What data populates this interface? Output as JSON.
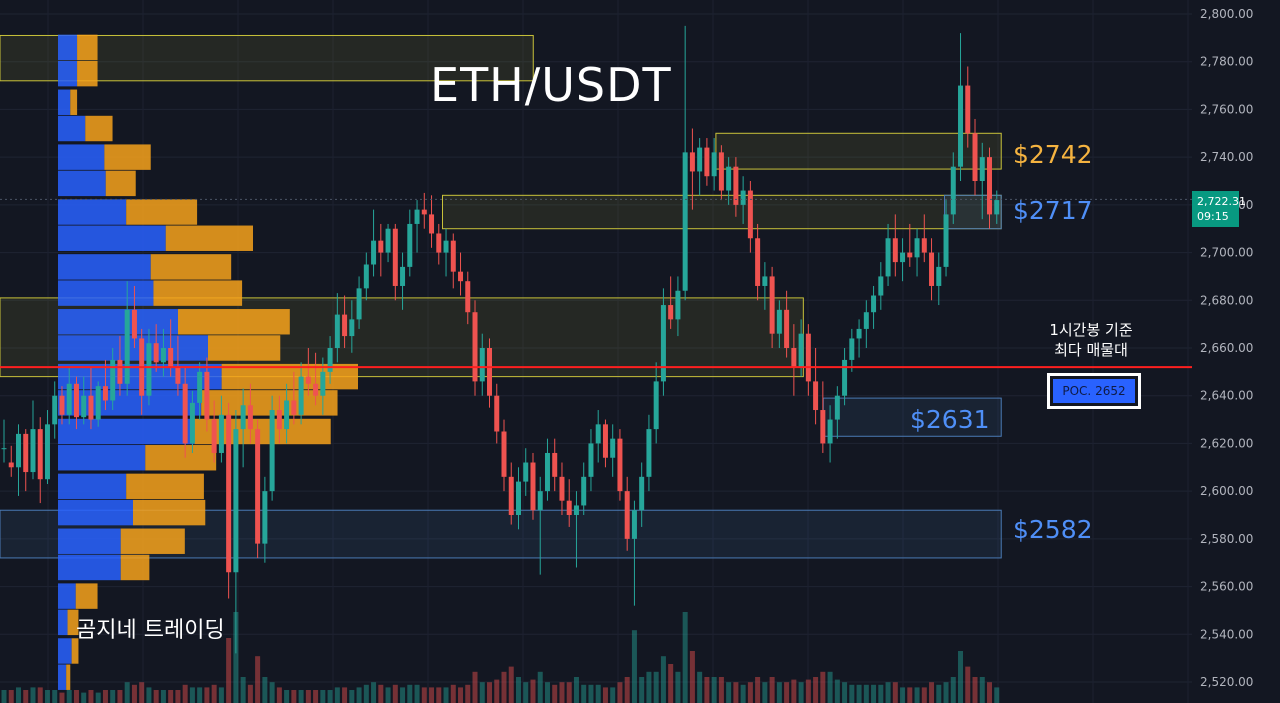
{
  "title": "ETH/USDT",
  "watermark": "곰지네 트레이딩",
  "levels": {
    "l2742": "$2742",
    "l2717": "$2717",
    "l2631": "$2631",
    "l2582": "$2582"
  },
  "poc": {
    "note_line1": "1시간봉 기준",
    "note_line2": "최다 매물대",
    "label": "POC. 2652"
  },
  "current": {
    "price": "2,722.31",
    "countdown": "09:15"
  },
  "colors": {
    "background": "#131722",
    "up": "#26a69a",
    "down": "#ef5350",
    "poc_line": "#ff1f1f",
    "profile_blue": "#2962ff",
    "profile_orange": "#f7a21b",
    "zone_yellow": "#c9c23a",
    "zone_blue": "#4a7ab5"
  },
  "chart_data": {
    "type": "candlestick",
    "symbol": "ETH/USDT",
    "timeframe": "1h",
    "y_axis": {
      "ylim": [
        2510,
        2815
      ],
      "ticks": [
        "2,800.00",
        "2,780.00",
        "2,760.00",
        "2,740.00",
        "2,720.00",
        "2,700.00",
        "2,680.00",
        "2,660.00",
        "2,640.00",
        "2,620.00",
        "2,600.00",
        "2,580.00",
        "2,560.00",
        "2,540.00",
        "2,520.00"
      ]
    },
    "grid": true,
    "last_price": 2722.31,
    "poc": 2652,
    "marked_levels": [
      2742,
      2717,
      2631,
      2582
    ],
    "zones": [
      {
        "kind": "yellow",
        "low": 2772,
        "high": 2791,
        "from": 0,
        "to": 0.4166
      },
      {
        "kind": "yellow",
        "low": 2735,
        "high": 2750,
        "from": 0.5593,
        "to": 0.7822
      },
      {
        "kind": "yellow",
        "low": 2710,
        "high": 2724,
        "from": 0.3457,
        "to": 0.7822
      },
      {
        "kind": "yellow",
        "low": 2648,
        "high": 2681,
        "from": 0,
        "to": 0.6276
      },
      {
        "kind": "blue",
        "low": 2710,
        "high": 2724,
        "from": 0.7379,
        "to": 0.7822
      },
      {
        "kind": "blue",
        "low": 2623,
        "high": 2639,
        "from": 0.6432,
        "to": 0.7822
      },
      {
        "kind": "blue",
        "low": 2572,
        "high": 2592,
        "from": 0,
        "to": 0.7822
      }
    ],
    "volume_profile": {
      "price_step": 11.5,
      "rows": [
        {
          "price": 2786,
          "up": 0.14,
          "down": 0.15
        },
        {
          "price": 2775,
          "up": 0.14,
          "down": 0.15
        },
        {
          "price": 2763,
          "up": 0.09,
          "down": 0.05
        },
        {
          "price": 2752,
          "up": 0.2,
          "down": 0.2
        },
        {
          "price": 2740,
          "up": 0.34,
          "down": 0.34
        },
        {
          "price": 2729,
          "up": 0.35,
          "down": 0.22
        },
        {
          "price": 2717,
          "up": 0.5,
          "down": 0.52
        },
        {
          "price": 2706,
          "up": 0.79,
          "down": 0.64
        },
        {
          "price": 2694,
          "up": 0.68,
          "down": 0.59
        },
        {
          "price": 2683,
          "up": 0.7,
          "down": 0.65
        },
        {
          "price": 2671,
          "up": 0.88,
          "down": 0.82
        },
        {
          "price": 2660,
          "up": 1.1,
          "down": 0.53
        },
        {
          "price": 2648,
          "up": 1.2,
          "down": 1.0
        },
        {
          "price": 2637,
          "up": 1.05,
          "down": 1.0
        },
        {
          "price": 2625,
          "up": 1.0,
          "down": 1.0
        },
        {
          "price": 2614,
          "up": 0.64,
          "down": 0.52
        },
        {
          "price": 2602,
          "up": 0.5,
          "down": 0.57
        },
        {
          "price": 2591,
          "up": 0.55,
          "down": 0.53
        },
        {
          "price": 2579,
          "up": 0.46,
          "down": 0.47
        },
        {
          "price": 2568,
          "up": 0.46,
          "down": 0.21
        },
        {
          "price": 2556,
          "up": 0.13,
          "down": 0.16
        },
        {
          "price": 2545,
          "up": 0.07,
          "down": 0.08
        },
        {
          "price": 2533,
          "up": 0.1,
          "down": 0.05
        },
        {
          "price": 2522,
          "up": 0.06,
          "down": 0.03
        }
      ]
    },
    "candles": [
      [
        2618,
        2630,
        2612,
        2618,
        0.05
      ],
      [
        2612,
        2619,
        2606,
        2610,
        0.05
      ],
      [
        2610,
        2628,
        2598,
        2624,
        0.06
      ],
      [
        2624,
        2626,
        2600,
        2608,
        0.05
      ],
      [
        2608,
        2638,
        2605,
        2626,
        0.06
      ],
      [
        2626,
        2631,
        2595,
        2605,
        0.06
      ],
      [
        2605,
        2634,
        2603,
        2628,
        0.05
      ],
      [
        2628,
        2646,
        2622,
        2640,
        0.05
      ],
      [
        2640,
        2644,
        2628,
        2632,
        0.04
      ],
      [
        2632,
        2652,
        2628,
        2645,
        0.05
      ],
      [
        2645,
        2648,
        2626,
        2631,
        0.05
      ],
      [
        2631,
        2648,
        2628,
        2640,
        0.04
      ],
      [
        2640,
        2652,
        2626,
        2630,
        0.05
      ],
      [
        2630,
        2646,
        2627,
        2644,
        0.04
      ],
      [
        2644,
        2655,
        2634,
        2638,
        0.05
      ],
      [
        2638,
        2660,
        2634,
        2655,
        0.05
      ],
      [
        2655,
        2665,
        2640,
        2645,
        0.05
      ],
      [
        2645,
        2688,
        2640,
        2676,
        0.08
      ],
      [
        2676,
        2686,
        2660,
        2664,
        0.07
      ],
      [
        2664,
        2668,
        2632,
        2640,
        0.08
      ],
      [
        2640,
        2668,
        2636,
        2662,
        0.06
      ],
      [
        2662,
        2670,
        2650,
        2654,
        0.05
      ],
      [
        2654,
        2668,
        2648,
        2660,
        0.05
      ],
      [
        2660,
        2672,
        2648,
        2652,
        0.05
      ],
      [
        2652,
        2665,
        2640,
        2645,
        0.05
      ],
      [
        2645,
        2652,
        2614,
        2620,
        0.07
      ],
      [
        2620,
        2642,
        2616,
        2637,
        0.06
      ],
      [
        2637,
        2654,
        2630,
        2650,
        0.06
      ],
      [
        2650,
        2656,
        2625,
        2630,
        0.06
      ],
      [
        2630,
        2638,
        2612,
        2616,
        0.07
      ],
      [
        2616,
        2640,
        2612,
        2632,
        0.06
      ],
      [
        2632,
        2637,
        2555,
        2566,
        0.25
      ],
      [
        2566,
        2634,
        2532,
        2626,
        0.35
      ],
      [
        2626,
        2643,
        2610,
        2636,
        0.1
      ],
      [
        2636,
        2645,
        2620,
        2626,
        0.07
      ],
      [
        2626,
        2630,
        2572,
        2578,
        0.18
      ],
      [
        2578,
        2606,
        2570,
        2600,
        0.1
      ],
      [
        2600,
        2640,
        2596,
        2634,
        0.08
      ],
      [
        2634,
        2640,
        2620,
        2626,
        0.06
      ],
      [
        2626,
        2645,
        2620,
        2638,
        0.05
      ],
      [
        2638,
        2650,
        2628,
        2632,
        0.05
      ],
      [
        2632,
        2654,
        2628,
        2648,
        0.05
      ],
      [
        2648,
        2660,
        2640,
        2645,
        0.05
      ],
      [
        2645,
        2658,
        2636,
        2640,
        0.05
      ],
      [
        2640,
        2656,
        2632,
        2650,
        0.05
      ],
      [
        2650,
        2665,
        2645,
        2660,
        0.05
      ],
      [
        2660,
        2683,
        2654,
        2674,
        0.06
      ],
      [
        2674,
        2682,
        2660,
        2665,
        0.06
      ],
      [
        2665,
        2680,
        2658,
        2672,
        0.05
      ],
      [
        2672,
        2690,
        2668,
        2685,
        0.06
      ],
      [
        2685,
        2700,
        2680,
        2695,
        0.07
      ],
      [
        2695,
        2718,
        2690,
        2705,
        0.08
      ],
      [
        2705,
        2712,
        2690,
        2700,
        0.07
      ],
      [
        2700,
        2712,
        2696,
        2710,
        0.06
      ],
      [
        2710,
        2712,
        2680,
        2686,
        0.07
      ],
      [
        2686,
        2700,
        2676,
        2694,
        0.06
      ],
      [
        2694,
        2718,
        2690,
        2712,
        0.07
      ],
      [
        2712,
        2722,
        2700,
        2718,
        0.07
      ],
      [
        2718,
        2725,
        2710,
        2716,
        0.06
      ],
      [
        2716,
        2724,
        2702,
        2708,
        0.06
      ],
      [
        2708,
        2712,
        2695,
        2700,
        0.06
      ],
      [
        2700,
        2710,
        2690,
        2705,
        0.06
      ],
      [
        2705,
        2708,
        2685,
        2692,
        0.07
      ],
      [
        2692,
        2700,
        2682,
        2688,
        0.06
      ],
      [
        2688,
        2692,
        2670,
        2675,
        0.07
      ],
      [
        2675,
        2680,
        2640,
        2646,
        0.12
      ],
      [
        2646,
        2666,
        2640,
        2660,
        0.08
      ],
      [
        2660,
        2664,
        2635,
        2640,
        0.08
      ],
      [
        2640,
        2645,
        2620,
        2625,
        0.09
      ],
      [
        2625,
        2630,
        2600,
        2606,
        0.12
      ],
      [
        2606,
        2612,
        2586,
        2590,
        0.14
      ],
      [
        2590,
        2610,
        2584,
        2604,
        0.1
      ],
      [
        2604,
        2618,
        2598,
        2612,
        0.08
      ],
      [
        2612,
        2616,
        2588,
        2592,
        0.09
      ],
      [
        2592,
        2606,
        2565,
        2600,
        0.12
      ],
      [
        2600,
        2622,
        2596,
        2616,
        0.08
      ],
      [
        2616,
        2622,
        2600,
        2606,
        0.07
      ],
      [
        2606,
        2612,
        2590,
        2596,
        0.08
      ],
      [
        2596,
        2605,
        2585,
        2590,
        0.08
      ],
      [
        2590,
        2600,
        2568,
        2594,
        0.1
      ],
      [
        2594,
        2612,
        2590,
        2606,
        0.07
      ],
      [
        2606,
        2626,
        2600,
        2620,
        0.07
      ],
      [
        2620,
        2634,
        2612,
        2628,
        0.07
      ],
      [
        2628,
        2630,
        2610,
        2614,
        0.06
      ],
      [
        2614,
        2628,
        2606,
        2622,
        0.06
      ],
      [
        2622,
        2626,
        2596,
        2600,
        0.08
      ],
      [
        2600,
        2606,
        2575,
        2580,
        0.1
      ],
      [
        2580,
        2596,
        2552,
        2592,
        0.28
      ],
      [
        2592,
        2612,
        2585,
        2606,
        0.1
      ],
      [
        2606,
        2632,
        2600,
        2626,
        0.12
      ],
      [
        2626,
        2654,
        2620,
        2646,
        0.12
      ],
      [
        2646,
        2685,
        2640,
        2678,
        0.18
      ],
      [
        2678,
        2690,
        2668,
        2672,
        0.15
      ],
      [
        2672,
        2690,
        2665,
        2684,
        0.12
      ],
      [
        2684,
        2795,
        2680,
        2742,
        0.35
      ],
      [
        2742,
        2752,
        2718,
        2734,
        0.2
      ],
      [
        2734,
        2748,
        2724,
        2744,
        0.12
      ],
      [
        2744,
        2748,
        2728,
        2732,
        0.1
      ],
      [
        2732,
        2748,
        2726,
        2742,
        0.1
      ],
      [
        2742,
        2745,
        2722,
        2726,
        0.1
      ],
      [
        2726,
        2740,
        2720,
        2736,
        0.08
      ],
      [
        2736,
        2740,
        2715,
        2720,
        0.08
      ],
      [
        2720,
        2732,
        2712,
        2726,
        0.07
      ],
      [
        2726,
        2730,
        2700,
        2706,
        0.08
      ],
      [
        2706,
        2712,
        2680,
        2686,
        0.1
      ],
      [
        2686,
        2696,
        2676,
        2690,
        0.08
      ],
      [
        2690,
        2694,
        2660,
        2666,
        0.1
      ],
      [
        2666,
        2680,
        2660,
        2676,
        0.08
      ],
      [
        2676,
        2684,
        2656,
        2660,
        0.08
      ],
      [
        2660,
        2670,
        2640,
        2652,
        0.09
      ],
      [
        2652,
        2672,
        2648,
        2666,
        0.08
      ],
      [
        2666,
        2670,
        2640,
        2646,
        0.09
      ],
      [
        2646,
        2660,
        2628,
        2634,
        0.1
      ],
      [
        2634,
        2646,
        2616,
        2620,
        0.12
      ],
      [
        2620,
        2636,
        2612,
        2630,
        0.12
      ],
      [
        2630,
        2644,
        2622,
        2640,
        0.09
      ],
      [
        2640,
        2660,
        2636,
        2655,
        0.08
      ],
      [
        2655,
        2668,
        2650,
        2664,
        0.07
      ],
      [
        2664,
        2672,
        2656,
        2668,
        0.07
      ],
      [
        2668,
        2680,
        2660,
        2675,
        0.07
      ],
      [
        2675,
        2686,
        2668,
        2682,
        0.07
      ],
      [
        2682,
        2696,
        2676,
        2690,
        0.07
      ],
      [
        2690,
        2712,
        2686,
        2706,
        0.08
      ],
      [
        2706,
        2716,
        2690,
        2696,
        0.08
      ],
      [
        2696,
        2706,
        2688,
        2700,
        0.06
      ],
      [
        2700,
        2712,
        2694,
        2698,
        0.06
      ],
      [
        2698,
        2710,
        2690,
        2706,
        0.06
      ],
      [
        2706,
        2716,
        2696,
        2700,
        0.06
      ],
      [
        2700,
        2706,
        2680,
        2686,
        0.08
      ],
      [
        2686,
        2700,
        2678,
        2694,
        0.07
      ],
      [
        2694,
        2722,
        2690,
        2716,
        0.08
      ],
      [
        2716,
        2742,
        2712,
        2736,
        0.1
      ],
      [
        2736,
        2792,
        2730,
        2770,
        0.2
      ],
      [
        2770,
        2778,
        2744,
        2750,
        0.14
      ],
      [
        2750,
        2756,
        2724,
        2730,
        0.1
      ],
      [
        2730,
        2746,
        2714,
        2740,
        0.1
      ],
      [
        2740,
        2744,
        2710,
        2716,
        0.08
      ],
      [
        2716,
        2726,
        2712,
        2722,
        0.06
      ]
    ]
  }
}
